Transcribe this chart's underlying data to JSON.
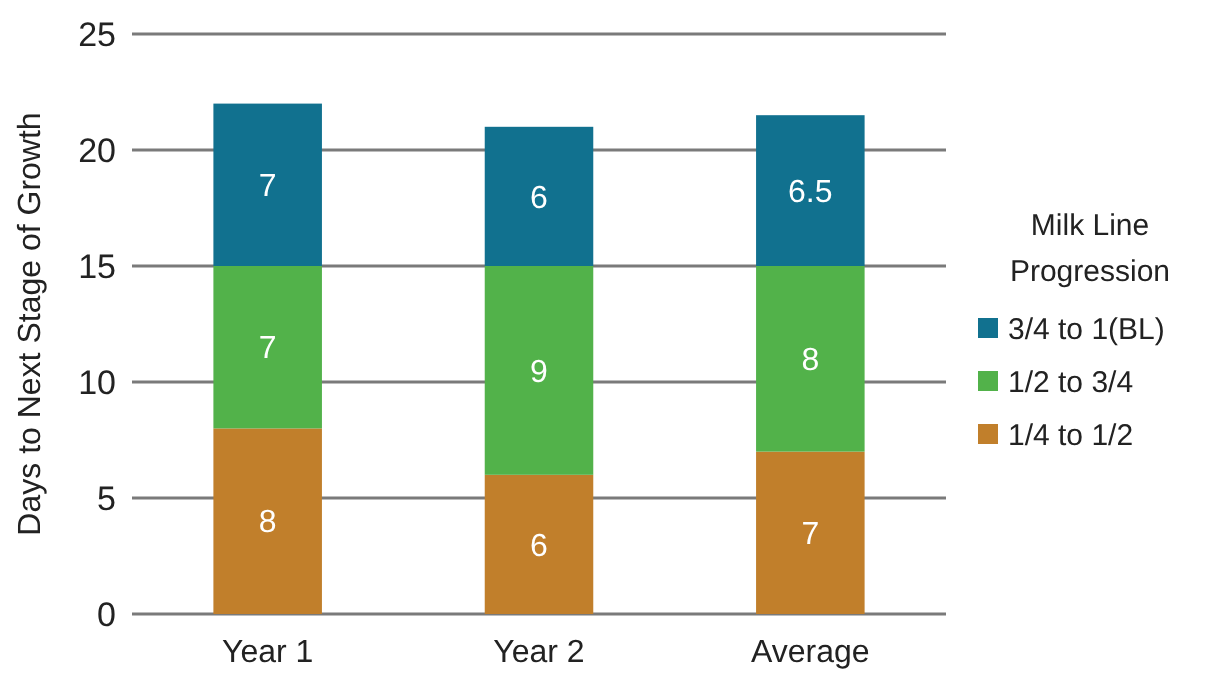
{
  "chart_data": {
    "type": "bar",
    "stacked": true,
    "ylabel": "Days to Next Stage of Growth",
    "legend_title": "Milk Line Progression",
    "categories": [
      "Year 1",
      "Year 2",
      "Average"
    ],
    "series": [
      {
        "name": "1/4 to 1/2",
        "color": "#c17f2b",
        "values": [
          8,
          6,
          7
        ]
      },
      {
        "name": "1/2 to 3/4",
        "color": "#52b24a",
        "values": [
          7,
          9,
          8
        ]
      },
      {
        "name": "3/4 to 1(BL)",
        "color": "#11718f",
        "values": [
          7,
          6,
          6.5
        ]
      }
    ],
    "ylim": [
      0,
      25
    ],
    "yticks": [
      0,
      5,
      10,
      15,
      20,
      25
    ],
    "grid": "y",
    "legend": "right",
    "data_labels": true
  }
}
